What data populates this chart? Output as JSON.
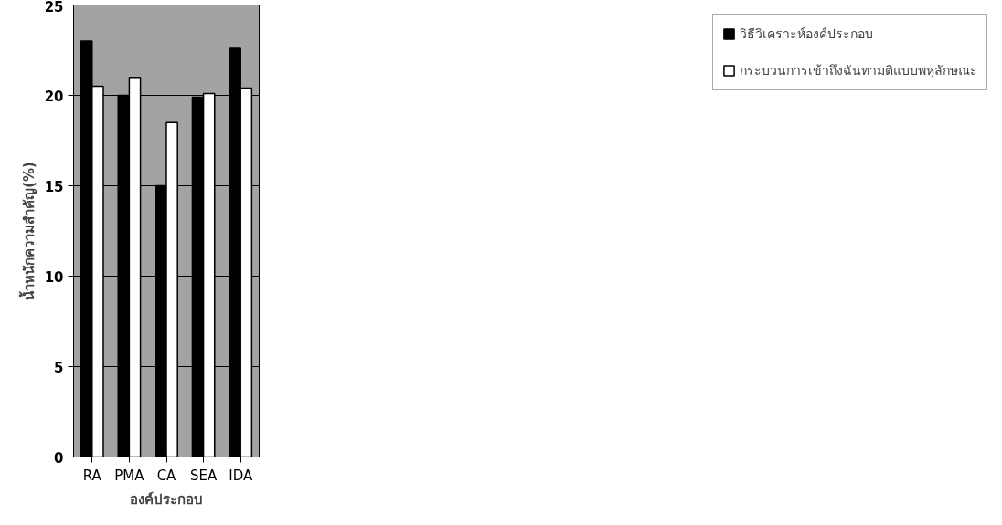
{
  "chart_data": {
    "type": "bar",
    "xlabel": "องค์ประกอบ",
    "ylabel": "น้ำหนักความสำคัญ(%)",
    "categories": [
      "RA",
      "PMA",
      "CA",
      "SEA",
      "IDA"
    ],
    "series": [
      {
        "name": "วิธีวิเคราะห์องค์ประกอบ",
        "color": "#000000",
        "values": [
          23,
          20,
          15,
          19.9,
          22.6
        ]
      },
      {
        "name": "กระบวนการเข้าถึงฉันทามติแบบพหุลักษณะ",
        "color": "#ffffff",
        "values": [
          20.5,
          21,
          18.5,
          20.1,
          20.4
        ]
      }
    ],
    "ylim": [
      0,
      25
    ],
    "yticks": [
      0,
      5,
      10,
      15,
      20,
      25
    ],
    "grid": "y",
    "legend": "right"
  }
}
